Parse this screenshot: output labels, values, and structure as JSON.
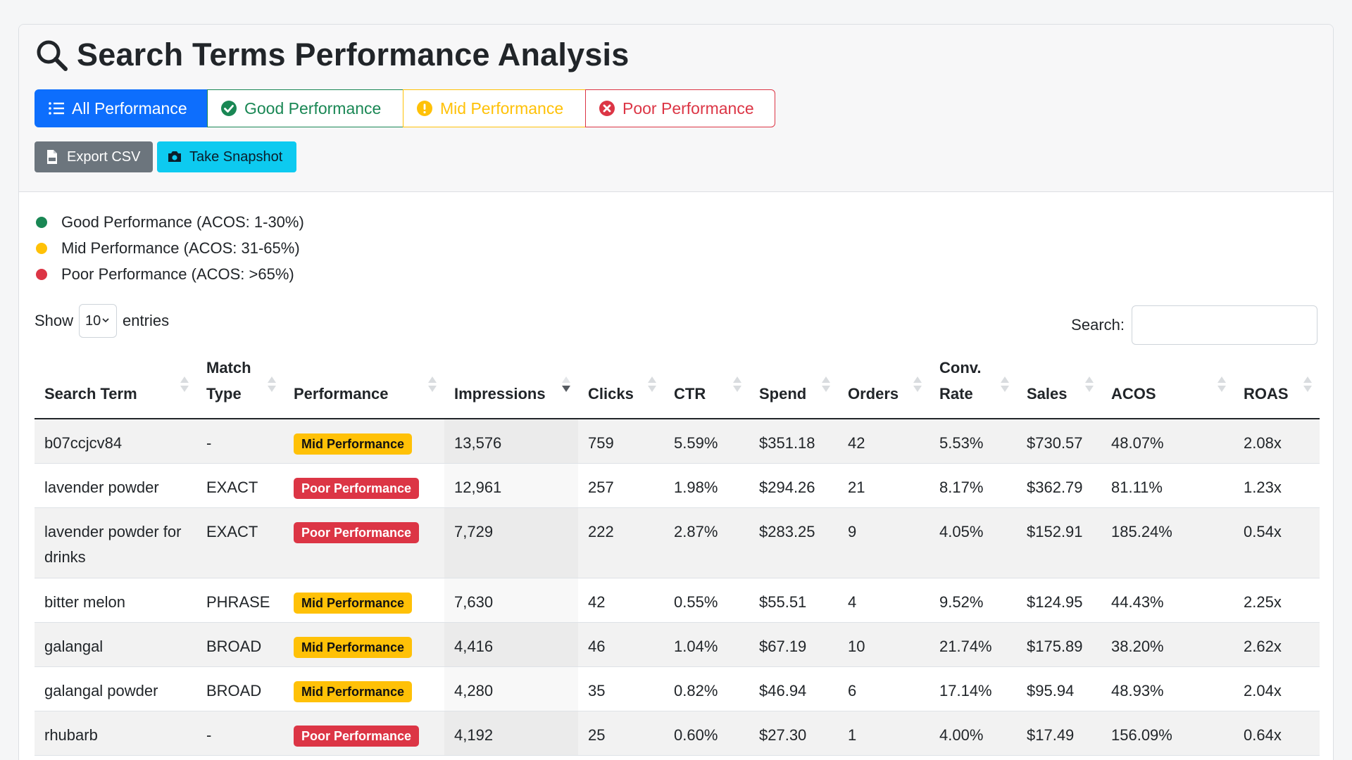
{
  "header": {
    "title": "Search Terms Performance Analysis",
    "filters": [
      {
        "key": "all",
        "label": "All Performance",
        "icon": "list-icon",
        "active": true
      },
      {
        "key": "good",
        "label": "Good Performance",
        "icon": "check-circle-icon"
      },
      {
        "key": "mid",
        "label": "Mid Performance",
        "icon": "exclamation-circle-icon"
      },
      {
        "key": "poor",
        "label": "Poor Performance",
        "icon": "x-circle-icon"
      }
    ],
    "actions": {
      "export_label": "Export CSV",
      "snapshot_label": "Take Snapshot"
    }
  },
  "legend": [
    {
      "label": "Good Performance (ACOS: 1-30%)",
      "color": "#198754"
    },
    {
      "label": "Mid Performance (ACOS: 31-65%)",
      "color": "#ffc107"
    },
    {
      "label": "Poor Performance (ACOS: >65%)",
      "color": "#dc3545"
    }
  ],
  "controls": {
    "show_label": "Show",
    "entries_value": "10",
    "entries_label": "entries",
    "search_label": "Search:",
    "search_value": ""
  },
  "table": {
    "columns": [
      "Search Term",
      "Match Type",
      "Performance",
      "Impressions",
      "Clicks",
      "CTR",
      "Spend",
      "Orders",
      "Conv. Rate",
      "Sales",
      "ACOS",
      "ROAS"
    ],
    "sorted_column": "Impressions",
    "rows": [
      [
        "b07ccjcv84",
        "-",
        "Mid Performance",
        "13,576",
        "759",
        "5.59%",
        "$351.18",
        "42",
        "5.53%",
        "$730.57",
        "48.07%",
        "2.08x"
      ],
      [
        "lavender powder",
        "EXACT",
        "Poor Performance",
        "12,961",
        "257",
        "1.98%",
        "$294.26",
        "21",
        "8.17%",
        "$362.79",
        "81.11%",
        "1.23x"
      ],
      [
        "lavender powder for drinks",
        "EXACT",
        "Poor Performance",
        "7,729",
        "222",
        "2.87%",
        "$283.25",
        "9",
        "4.05%",
        "$152.91",
        "185.24%",
        "0.54x"
      ],
      [
        "bitter melon",
        "PHRASE",
        "Mid Performance",
        "7,630",
        "42",
        "0.55%",
        "$55.51",
        "4",
        "9.52%",
        "$124.95",
        "44.43%",
        "2.25x"
      ],
      [
        "galangal",
        "BROAD",
        "Mid Performance",
        "4,416",
        "46",
        "1.04%",
        "$67.19",
        "10",
        "21.74%",
        "$175.89",
        "38.20%",
        "2.62x"
      ],
      [
        "galangal powder",
        "BROAD",
        "Mid Performance",
        "4,280",
        "35",
        "0.82%",
        "$46.94",
        "6",
        "17.14%",
        "$95.94",
        "48.93%",
        "2.04x"
      ],
      [
        "rhubarb",
        "-",
        "Poor Performance",
        "4,192",
        "25",
        "0.60%",
        "$27.30",
        "1",
        "4.00%",
        "$17.49",
        "156.09%",
        "0.64x"
      ]
    ]
  }
}
